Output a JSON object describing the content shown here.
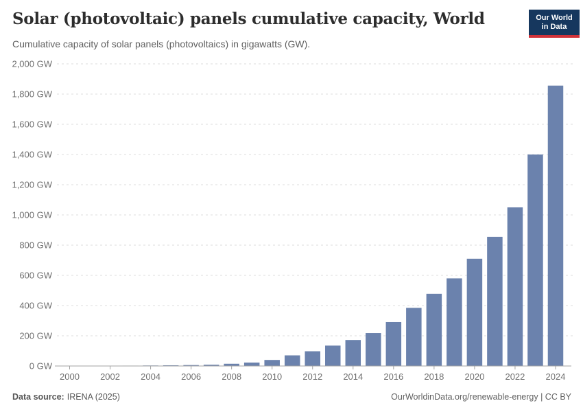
{
  "header": {
    "title": "Solar (photovoltaic) panels cumulative capacity, World",
    "subtitle": "Cumulative capacity of solar panels (photovoltaics) in gigawatts (GW)."
  },
  "logo": {
    "line1": "Our World",
    "line2": "in Data",
    "bg_color": "#16375e",
    "stripe_color": "#d13239"
  },
  "chart_data": {
    "type": "bar",
    "title": "Solar (photovoltaic) panels cumulative capacity, World",
    "unit": "GW",
    "x": [
      2000,
      2001,
      2002,
      2003,
      2004,
      2005,
      2006,
      2007,
      2008,
      2009,
      2010,
      2011,
      2012,
      2013,
      2014,
      2015,
      2016,
      2017,
      2018,
      2019,
      2020,
      2021,
      2022,
      2023,
      2024
    ],
    "values": [
      1.2,
      1.5,
      1.9,
      2.4,
      3.4,
      4.6,
      6.1,
      8.5,
      14.7,
      22.7,
      40,
      70.4,
      97.6,
      135,
      172,
      218,
      291,
      385,
      478,
      580,
      710,
      855,
      1050,
      1400,
      1856
    ],
    "xticks": [
      2000,
      2002,
      2004,
      2006,
      2008,
      2010,
      2012,
      2014,
      2016,
      2018,
      2020,
      2022,
      2024
    ],
    "yticks": [
      0,
      200,
      400,
      600,
      800,
      1000,
      1200,
      1400,
      1600,
      1800,
      2000
    ],
    "ytick_labels": [
      "0 GW",
      "200 GW",
      "400 GW",
      "600 GW",
      "800 GW",
      "1,000 GW",
      "1,200 GW",
      "1,400 GW",
      "1,600 GW",
      "1,800 GW",
      "2,000 GW"
    ],
    "ylim": [
      0,
      2000
    ],
    "grid": "dashed horizontal",
    "legend": "none",
    "bar_color": "#6b82ad",
    "gridline_color": "#dcdcdc",
    "axis_color": "#a3a3a3",
    "tick_label_color": "#6f6f6f"
  },
  "footer": {
    "source_label": "Data source:",
    "source_value": "IRENA (2025)",
    "credit": "OurWorldinData.org/renewable-energy | CC BY"
  }
}
